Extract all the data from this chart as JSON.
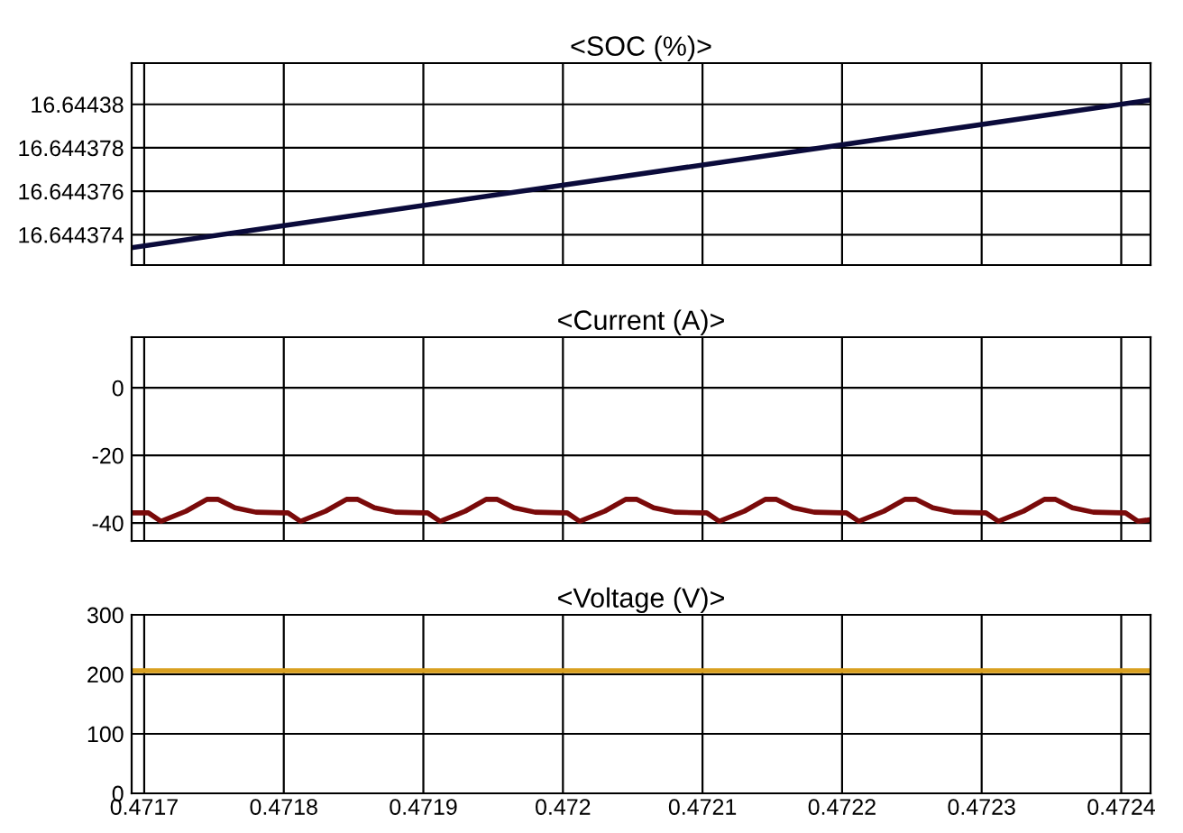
{
  "chart_data": [
    {
      "type": "line",
      "title": "<SOC (%)>",
      "tick_labels": "y",
      "grid": true,
      "xlim": [
        0.471691,
        0.472421
      ],
      "xticks": [
        0.4717,
        0.4718,
        0.4719,
        0.472,
        0.4721,
        0.4722,
        0.4723,
        0.4724
      ],
      "ylim": [
        16.6443726,
        16.6443819
      ],
      "yticks": [
        16.644374,
        16.644376,
        16.644378,
        16.64438
      ],
      "series": [
        {
          "color": "#0b0b3b",
          "x": [
            0.471691,
            0.472421
          ],
          "values": [
            16.6443734,
            16.6443802
          ]
        }
      ]
    },
    {
      "type": "line",
      "title": "<Current (A)>",
      "tick_labels": "y",
      "grid": true,
      "xlim": [
        0.471691,
        0.472421
      ],
      "xticks": [
        0.4717,
        0.4718,
        0.4719,
        0.472,
        0.4721,
        0.4722,
        0.4723,
        0.4724
      ],
      "ylim": [
        -45.3,
        15
      ],
      "yticks": [
        -40,
        -20,
        0
      ],
      "series": [
        {
          "color": "#7a0a0a",
          "x": [
            0.471691,
            0.4717,
            0.471703,
            0.471712,
            0.47173,
            0.471745,
            0.471753,
            0.471765,
            0.47178,
            0.4718,
            0.471803,
            0.471812,
            0.47183,
            0.471845,
            0.471853,
            0.471865,
            0.47188,
            0.4719,
            0.471903,
            0.471912,
            0.47193,
            0.471945,
            0.471953,
            0.471965,
            0.47198,
            0.472,
            0.472003,
            0.472012,
            0.47203,
            0.472045,
            0.472053,
            0.472065,
            0.47208,
            0.4721,
            0.472103,
            0.472112,
            0.47213,
            0.472145,
            0.472153,
            0.472165,
            0.47218,
            0.4722,
            0.472203,
            0.472212,
            0.47223,
            0.472245,
            0.472253,
            0.472265,
            0.47228,
            0.4723,
            0.472303,
            0.472312,
            0.47233,
            0.472345,
            0.472353,
            0.472365,
            0.47238,
            0.4724,
            0.472403,
            0.472412,
            0.472421
          ],
          "values": [
            -37,
            -37,
            -37,
            -39.5,
            -36.5,
            -33,
            -33,
            -35.5,
            -36.8,
            -37,
            -37,
            -39.5,
            -36.5,
            -33,
            -33,
            -35.5,
            -36.8,
            -37,
            -37,
            -39.5,
            -36.5,
            -33,
            -33,
            -35.5,
            -36.8,
            -37,
            -37,
            -39.5,
            -36.5,
            -33,
            -33,
            -35.5,
            -36.8,
            -37,
            -37,
            -39.5,
            -36.5,
            -33,
            -33,
            -35.5,
            -36.8,
            -37,
            -37,
            -39.5,
            -36.5,
            -33,
            -33,
            -35.5,
            -36.8,
            -37,
            -37,
            -39.5,
            -36.5,
            -33,
            -33,
            -35.5,
            -36.8,
            -37,
            -37,
            -39.5,
            -39
          ]
        }
      ]
    },
    {
      "type": "line",
      "title": "<Voltage (V)>",
      "grid": true,
      "xlim": [
        0.471691,
        0.472421
      ],
      "xticks": [
        0.4717,
        0.4718,
        0.4719,
        0.472,
        0.4721,
        0.4722,
        0.4723,
        0.4724
      ],
      "ylim": [
        0,
        300
      ],
      "yticks": [
        0,
        100,
        200,
        300
      ],
      "series": [
        {
          "color": "#d9a020",
          "x": [
            0.471691,
            0.472421
          ],
          "values": [
            206,
            206
          ]
        }
      ]
    }
  ]
}
